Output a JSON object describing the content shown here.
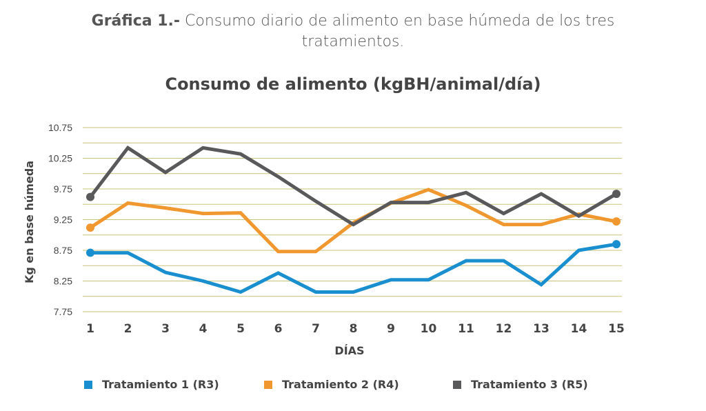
{
  "caption": {
    "lead": "Gráfica 1.-",
    "text": " Consumo diario de alimento en base húmeda de los tres tratamientos."
  },
  "chart_data": {
    "type": "line",
    "title": "Consumo de alimento (kgBH/animal/día)",
    "xlabel": "DÍAS",
    "ylabel": "Kg en base húmeda",
    "x": [
      1,
      2,
      3,
      4,
      5,
      6,
      7,
      8,
      9,
      10,
      11,
      12,
      13,
      14,
      15
    ],
    "y_ticks": [
      "7.75",
      "8.25",
      "8.75",
      "9.25",
      "9.75",
      "10.25",
      "10.75"
    ],
    "ylim": [
      7.75,
      10.75
    ],
    "grid": "horizontal",
    "legend_position": "bottom",
    "series": [
      {
        "name": "Tratamiento 1 (R3)",
        "color": "#1a8fd0",
        "values": [
          8.71,
          8.71,
          8.39,
          8.25,
          8.07,
          8.38,
          8.07,
          8.07,
          8.27,
          8.27,
          8.58,
          8.58,
          8.19,
          8.75,
          8.85
        ]
      },
      {
        "name": "Tratamiento 2 (R4)",
        "color": "#f0982f",
        "values": [
          9.12,
          9.52,
          9.44,
          9.35,
          9.36,
          8.73,
          8.73,
          9.2,
          9.52,
          9.74,
          9.48,
          9.17,
          9.17,
          9.34,
          9.22
        ]
      },
      {
        "name": "Tratamiento 3 (R5)",
        "color": "#59595b",
        "values": [
          9.62,
          10.42,
          10.02,
          10.42,
          10.32,
          9.95,
          9.55,
          9.17,
          9.53,
          9.53,
          9.69,
          9.35,
          9.67,
          9.31,
          9.67
        ]
      }
    ]
  }
}
